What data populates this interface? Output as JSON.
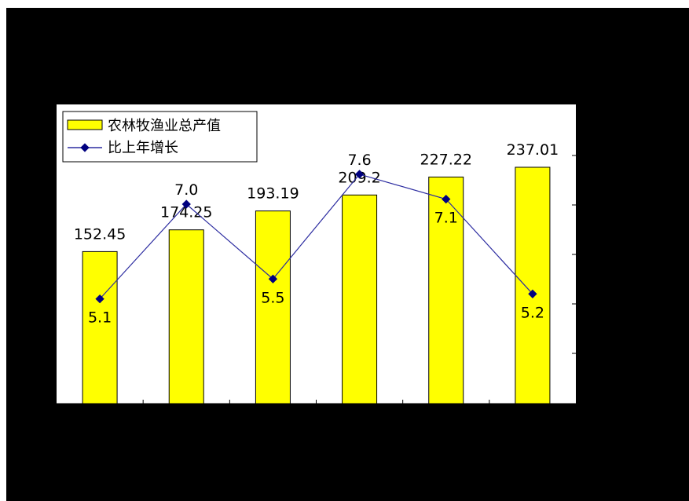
{
  "chart_data": {
    "type": "bar",
    "categories": [
      "",
      "",
      "",
      "",
      "",
      ""
    ],
    "series": [
      {
        "name": "农林牧渔业总产值",
        "type": "bar",
        "values": [
          152.45,
          174.25,
          193.19,
          209.2,
          227.22,
          237.01
        ],
        "labels": [
          "152.45",
          "174.25",
          "193.19",
          "209.2",
          "227.22",
          "237.01"
        ],
        "color": "#ffff00"
      },
      {
        "name": "比上年增长",
        "type": "line",
        "values": [
          5.1,
          7.0,
          5.5,
          7.6,
          7.1,
          5.2
        ],
        "labels": [
          "5.1",
          "7.0",
          "5.5",
          "7.6",
          "7.1",
          "5.2"
        ],
        "color": "#2b2ba0",
        "marker_color": "#000080"
      }
    ],
    "title": "",
    "xlabel": "",
    "ylabel": "",
    "legend": "top-left",
    "grid": false
  },
  "colors": {
    "background": "#000000",
    "plot_area": "#ffffff",
    "bar_fill": "#ffff00",
    "bar_stroke": "#000000",
    "line": "#2b2ba0",
    "marker": "#000080"
  }
}
